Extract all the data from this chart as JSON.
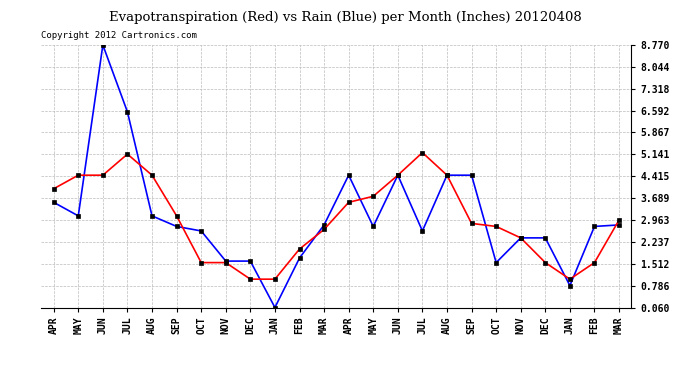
{
  "title": "Evapotranspiration (Red) vs Rain (Blue) per Month (Inches) 20120408",
  "copyright": "Copyright 2012 Cartronics.com",
  "months": [
    "APR",
    "MAY",
    "JUN",
    "JUL",
    "AUG",
    "SEP",
    "OCT",
    "NOV",
    "DEC",
    "JAN",
    "FEB",
    "MAR",
    "APR",
    "MAY",
    "JUN",
    "JUL",
    "AUG",
    "SEP",
    "OCT",
    "NOV",
    "DEC",
    "JAN",
    "FEB",
    "MAR"
  ],
  "red_data": [
    4.0,
    4.45,
    4.45,
    5.15,
    4.45,
    3.1,
    1.55,
    1.55,
    1.0,
    1.0,
    2.0,
    2.65,
    3.55,
    3.75,
    4.45,
    5.2,
    4.45,
    2.85,
    2.75,
    2.37,
    1.55,
    1.0,
    1.55,
    2.963
  ],
  "blue_data": [
    3.55,
    3.1,
    8.77,
    6.55,
    3.1,
    2.75,
    2.6,
    1.6,
    1.6,
    0.06,
    1.7,
    2.8,
    4.45,
    2.75,
    4.45,
    2.6,
    4.45,
    4.45,
    1.55,
    2.37,
    2.37,
    0.786,
    2.75,
    2.8
  ],
  "yticks": [
    0.06,
    0.786,
    1.512,
    2.237,
    2.963,
    3.689,
    4.415,
    5.141,
    5.867,
    6.592,
    7.318,
    8.044,
    8.77
  ],
  "ymin": 0.06,
  "ymax": 8.77,
  "red_color": "#FF0000",
  "blue_color": "#0000FF",
  "bg_color": "#FFFFFF",
  "grid_color": "#BBBBBB",
  "title_fontsize": 9.5,
  "copyright_fontsize": 6.5,
  "tick_fontsize": 7,
  "marker_size": 3,
  "linewidth": 1.2
}
